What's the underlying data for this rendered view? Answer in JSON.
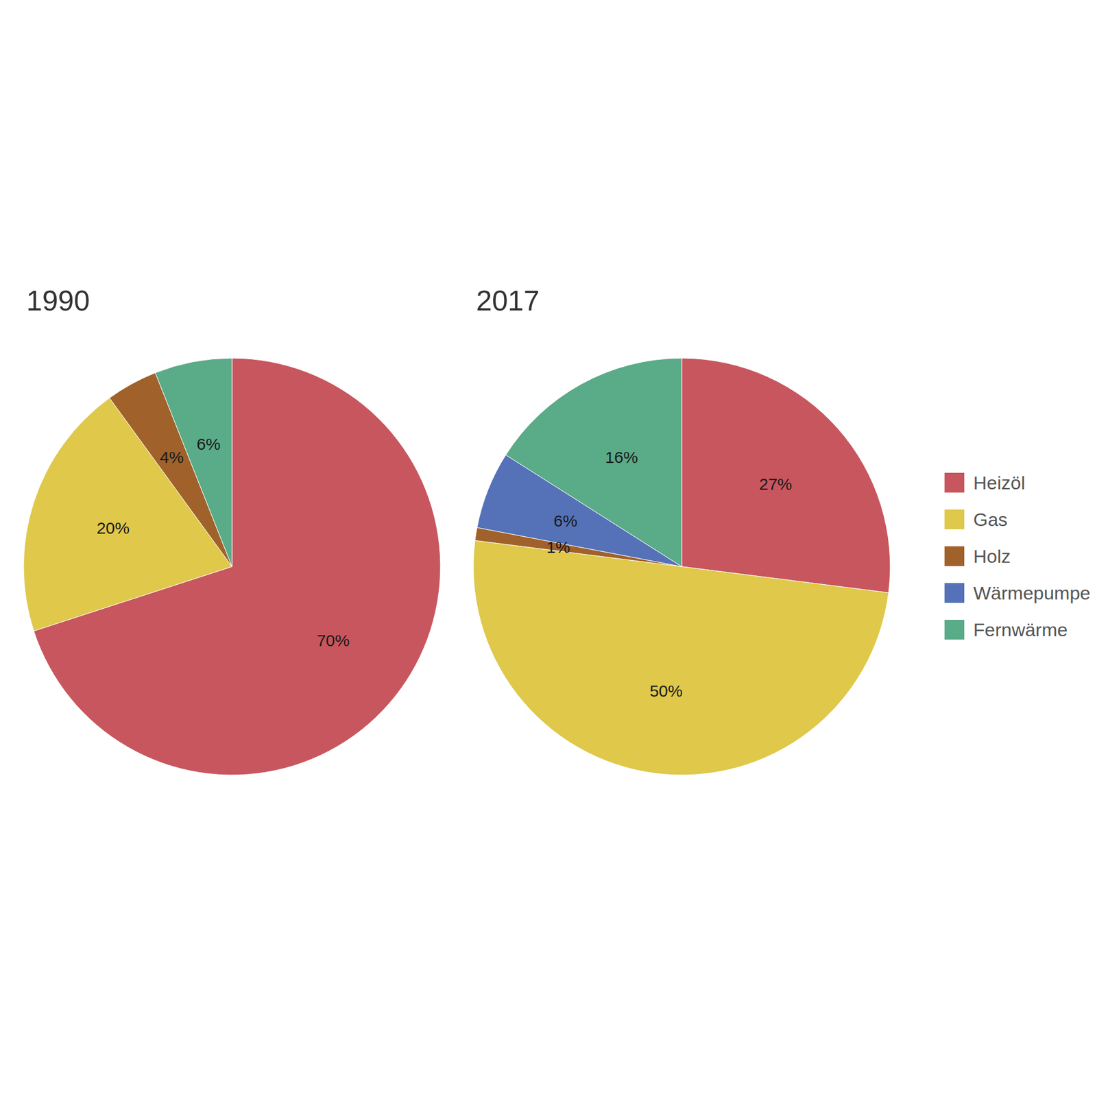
{
  "chart_data": [
    {
      "type": "pie",
      "title": "1990",
      "categories": [
        "Heizöl",
        "Gas",
        "Holz",
        "Wärmepumpe",
        "Fernwärme"
      ],
      "values": [
        70,
        20,
        4,
        0,
        6
      ],
      "value_labels": [
        "70%",
        "20%",
        "4%",
        null,
        "6%"
      ],
      "colors": [
        "#c8565e",
        "#dfc84a",
        "#a0622a",
        "#5572b8",
        "#5aab88"
      ],
      "data_labels": true
    },
    {
      "type": "pie",
      "title": "2017",
      "categories": [
        "Heizöl",
        "Gas",
        "Holz",
        "Wärmepumpe",
        "Fernwärme"
      ],
      "values": [
        27,
        50,
        1,
        6,
        16
      ],
      "value_labels": [
        "27%",
        "50%",
        "1%",
        "6%",
        "16%"
      ],
      "colors": [
        "#c8565e",
        "#dfc84a",
        "#a0622a",
        "#5572b8",
        "#5aab88"
      ],
      "data_labels": true,
      "legend": "right"
    }
  ]
}
